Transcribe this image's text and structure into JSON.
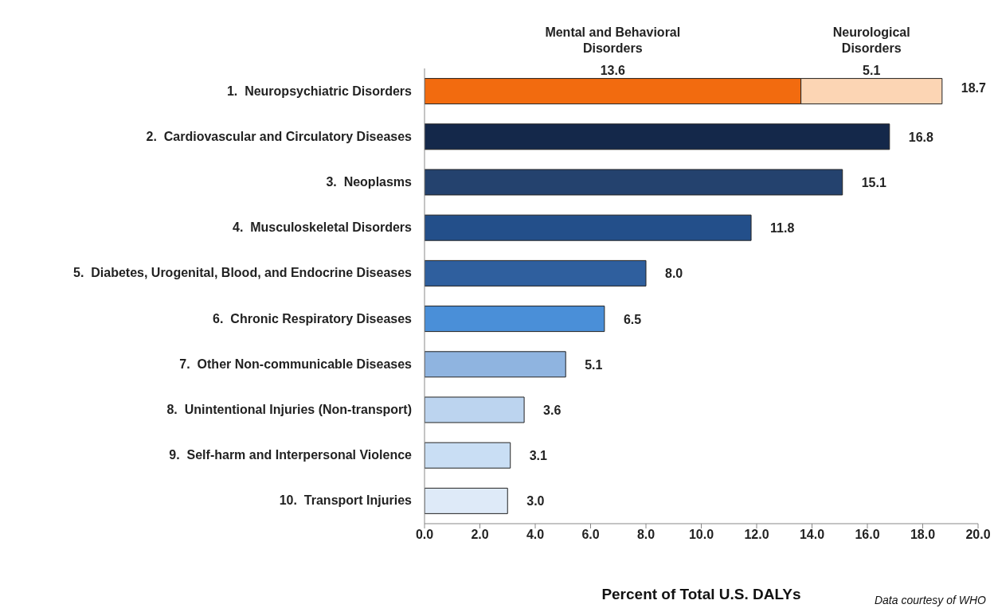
{
  "chart_data": {
    "type": "bar",
    "orientation": "horizontal",
    "stacked": true,
    "categories": [
      "1.  Neuropsychiatric Disorders",
      "2.  Cardiovascular and Circulatory Diseases",
      "3.  Neoplasms",
      "4.  Musculoskeletal Disorders",
      "5.  Diabetes, Urogenital, Blood, and Endocrine Diseases",
      "6.  Chronic Respiratory Diseases",
      "7.  Other Non-communicable Diseases",
      "8.  Unintentional Injuries (Non-transport)",
      "9.  Self-harm and Interpersonal Violence",
      "10.  Transport Injuries"
    ],
    "series": [
      {
        "name": "Mental and Behavioral Disorders",
        "color": "#f26b0f",
        "colors": [
          "#f26b0f",
          "#14284a",
          "#24426e",
          "#234f8a",
          "#2f5f9e",
          "#4a8fd8",
          "#8fb4e0",
          "#bcd4ef",
          "#c9def4",
          "#deeaf8"
        ],
        "values": [
          13.6,
          16.8,
          15.1,
          11.8,
          8.0,
          6.5,
          5.1,
          3.6,
          3.1,
          3.0
        ],
        "value_labels": [
          "13.6",
          "16.8",
          "15.1",
          "11.8",
          "8.0",
          "6.5",
          "5.1",
          "3.6",
          "3.1",
          "3.0"
        ]
      },
      {
        "name": "Neurological Disorders",
        "color": "#fcd5b4",
        "values": [
          5.1,
          null,
          null,
          null,
          null,
          null,
          null,
          null,
          null,
          null
        ],
        "value_labels": [
          "5.1",
          null,
          null,
          null,
          null,
          null,
          null,
          null,
          null,
          null
        ]
      }
    ],
    "totals": [
      "18.7",
      null,
      null,
      null,
      null,
      null,
      null,
      null,
      null,
      null
    ],
    "xlim": [
      0,
      20
    ],
    "xticks": [
      {
        "value": 0,
        "label": "0.0"
      },
      {
        "value": 2,
        "label": "2.0"
      },
      {
        "value": 4,
        "label": "4.0"
      },
      {
        "value": 6,
        "label": "6.0"
      },
      {
        "value": 8,
        "label": "8.0"
      },
      {
        "value": 10,
        "label": "10.0"
      },
      {
        "value": 12,
        "label": "12.0"
      },
      {
        "value": 14,
        "label": "14.0"
      },
      {
        "value": 16,
        "label": "16.0"
      },
      {
        "value": 18,
        "label": "18.0"
      },
      {
        "value": 20,
        "label": "20.0"
      }
    ],
    "xlabel": "Percent of Total U.S. DALYs",
    "grid": false,
    "legend": false,
    "annotations": [
      "Data courtesy of WHO"
    ]
  }
}
